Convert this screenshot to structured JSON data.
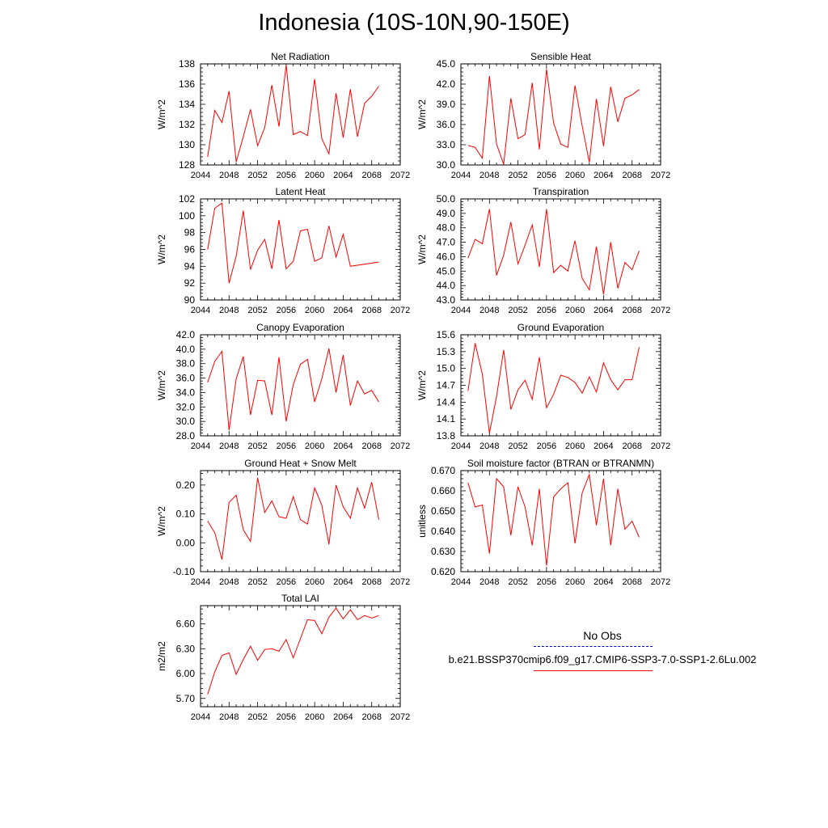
{
  "title": "Indonesia (10S-10N,90-150E)",
  "colors": {
    "model_line": "#ff0000",
    "obs_line": "#0000cc",
    "axis": "#000000"
  },
  "legend": {
    "obs_label": "No Obs",
    "case_label": "b.e21.BSSP370cmip6.f09_g17.CMIP6-SSP3-7.0-SSP1-2.6Lu.002"
  },
  "chart_data": [
    {
      "type": "line",
      "title": "Net Radiation",
      "ylabel": "W/m^2",
      "xlim": [
        2044,
        2072
      ],
      "xticks": [
        2044,
        2048,
        2052,
        2056,
        2060,
        2064,
        2068,
        2072
      ],
      "ylim": [
        128,
        138
      ],
      "yticks": [
        "128",
        "130",
        "132",
        "134",
        "136",
        "138"
      ],
      "x": [
        2045,
        2046,
        2047,
        2048,
        2049,
        2050,
        2051,
        2052,
        2053,
        2054,
        2055,
        2056,
        2057,
        2058,
        2059,
        2060,
        2061,
        2062,
        2063,
        2064,
        2065,
        2066,
        2067,
        2068,
        2069
      ],
      "series": [
        {
          "values": [
            128.8,
            133.4,
            132.2,
            135.3,
            128.3,
            130.8,
            133.5,
            129.9,
            131.7,
            135.9,
            131.8,
            137.9,
            131.0,
            131.3,
            130.9,
            136.5,
            130.6,
            129.1,
            135.1,
            130.7,
            135.5,
            130.8,
            134.1,
            134.8,
            135.8
          ]
        }
      ]
    },
    {
      "type": "line",
      "title": "Sensible Heat",
      "ylabel": "W/m^2",
      "xlim": [
        2044,
        2072
      ],
      "xticks": [
        2044,
        2048,
        2052,
        2056,
        2060,
        2064,
        2068,
        2072
      ],
      "ylim": [
        30,
        45
      ],
      "yticks": [
        "30.0",
        "33.0",
        "36.0",
        "39.0",
        "42.0",
        "45.0"
      ],
      "x": [
        2045,
        2046,
        2047,
        2048,
        2049,
        2050,
        2051,
        2052,
        2053,
        2054,
        2055,
        2056,
        2057,
        2058,
        2059,
        2060,
        2061,
        2062,
        2063,
        2064,
        2065,
        2066,
        2067,
        2068,
        2069
      ],
      "series": [
        {
          "values": [
            32.9,
            32.6,
            31.0,
            43.2,
            33.1,
            30.1,
            39.9,
            33.9,
            34.5,
            42.2,
            32.3,
            44.2,
            36.2,
            33.1,
            32.6,
            41.8,
            35.8,
            30.4,
            39.8,
            32.8,
            41.6,
            36.4,
            39.9,
            40.4,
            41.2
          ]
        }
      ]
    },
    {
      "type": "line",
      "title": "Latent Heat",
      "ylabel": "W/m^2",
      "xlim": [
        2044,
        2072
      ],
      "xticks": [
        2044,
        2048,
        2052,
        2056,
        2060,
        2064,
        2068,
        2072
      ],
      "ylim": [
        90,
        102
      ],
      "yticks": [
        "90",
        "92",
        "94",
        "96",
        "98",
        "100",
        "102"
      ],
      "x": [
        2045,
        2046,
        2047,
        2048,
        2049,
        2050,
        2051,
        2052,
        2053,
        2054,
        2055,
        2056,
        2057,
        2058,
        2059,
        2060,
        2061,
        2062,
        2063,
        2064,
        2065,
        2069
      ],
      "series": [
        {
          "values": [
            96.0,
            100.9,
            101.5,
            92.0,
            95.2,
            100.6,
            93.6,
            95.9,
            97.2,
            93.7,
            99.5,
            93.7,
            94.6,
            98.2,
            98.4,
            94.6,
            95.0,
            98.8,
            95.1,
            97.8,
            94.0,
            94.5
          ]
        }
      ]
    },
    {
      "type": "line",
      "title": "Transpiration",
      "ylabel": "W/m^2",
      "xlim": [
        2044,
        2072
      ],
      "xticks": [
        2044,
        2048,
        2052,
        2056,
        2060,
        2064,
        2068,
        2072
      ],
      "ylim": [
        43,
        50
      ],
      "yticks": [
        "43.0",
        "44.0",
        "45.0",
        "46.0",
        "47.0",
        "48.0",
        "49.0",
        "50.0"
      ],
      "x": [
        2045,
        2046,
        2047,
        2048,
        2049,
        2050,
        2051,
        2052,
        2053,
        2054,
        2055,
        2056,
        2057,
        2058,
        2059,
        2060,
        2061,
        2062,
        2063,
        2064,
        2065,
        2066,
        2067,
        2068,
        2069
      ],
      "series": [
        {
          "values": [
            45.9,
            47.2,
            46.9,
            49.3,
            44.7,
            46.1,
            48.4,
            45.5,
            46.8,
            48.2,
            45.3,
            49.3,
            44.9,
            45.4,
            45.0,
            47.1,
            44.5,
            43.7,
            46.7,
            43.4,
            47.0,
            43.8,
            45.6,
            45.1,
            46.4
          ]
        }
      ]
    },
    {
      "type": "line",
      "title": "Canopy Evaporation",
      "ylabel": "W/m^2",
      "xlim": [
        2044,
        2072
      ],
      "xticks": [
        2044,
        2048,
        2052,
        2056,
        2060,
        2064,
        2068,
        2072
      ],
      "ylim": [
        28,
        42
      ],
      "yticks": [
        "28.0",
        "30.0",
        "32.0",
        "34.0",
        "36.0",
        "38.0",
        "40.0",
        "42.0"
      ],
      "x": [
        2045,
        2046,
        2047,
        2048,
        2049,
        2050,
        2051,
        2052,
        2053,
        2054,
        2055,
        2056,
        2057,
        2058,
        2059,
        2060,
        2061,
        2062,
        2063,
        2064,
        2065,
        2066,
        2067,
        2068,
        2069
      ],
      "series": [
        {
          "values": [
            35.4,
            38.3,
            39.7,
            28.8,
            35.9,
            39.0,
            30.9,
            35.7,
            35.6,
            30.9,
            38.9,
            30.0,
            35.1,
            37.9,
            38.6,
            32.7,
            35.9,
            40.1,
            34.0,
            39.2,
            32.2,
            35.6,
            33.8,
            34.3,
            32.7
          ]
        }
      ]
    },
    {
      "type": "line",
      "title": "Ground Evaporation",
      "ylabel": "W/m^2",
      "xlim": [
        2044,
        2072
      ],
      "xticks": [
        2044,
        2048,
        2052,
        2056,
        2060,
        2064,
        2068,
        2072
      ],
      "ylim": [
        13.8,
        15.6
      ],
      "yticks": [
        "13.8",
        "14.1",
        "14.4",
        "14.7",
        "15.0",
        "15.3",
        "15.6"
      ],
      "x": [
        2045,
        2046,
        2047,
        2048,
        2049,
        2050,
        2051,
        2052,
        2053,
        2054,
        2055,
        2056,
        2057,
        2058,
        2059,
        2060,
        2061,
        2062,
        2063,
        2064,
        2065,
        2066,
        2067,
        2068,
        2069
      ],
      "series": [
        {
          "values": [
            14.6,
            15.45,
            14.9,
            13.85,
            14.5,
            15.33,
            14.27,
            14.62,
            14.79,
            14.45,
            15.2,
            14.3,
            14.54,
            14.88,
            14.84,
            14.75,
            14.56,
            14.85,
            14.58,
            15.1,
            14.8,
            14.62,
            14.8,
            14.8,
            15.38
          ]
        }
      ]
    },
    {
      "type": "line",
      "title": "Ground Heat + Snow Melt",
      "ylabel": "W/m^2",
      "xlim": [
        2044,
        2072
      ],
      "xticks": [
        2044,
        2048,
        2052,
        2056,
        2060,
        2064,
        2068,
        2072
      ],
      "ylim": [
        -0.1,
        0.25
      ],
      "yticks": [
        "-0.10",
        "0.00",
        "0.10",
        "0.20"
      ],
      "x": [
        2045,
        2046,
        2047,
        2048,
        2049,
        2050,
        2051,
        2052,
        2053,
        2054,
        2055,
        2056,
        2057,
        2058,
        2059,
        2060,
        2061,
        2062,
        2063,
        2064,
        2065,
        2066,
        2067,
        2068,
        2069
      ],
      "series": [
        {
          "values": [
            0.075,
            0.035,
            -0.058,
            0.14,
            0.165,
            0.045,
            0.005,
            0.225,
            0.105,
            0.145,
            0.09,
            0.085,
            0.16,
            0.08,
            0.065,
            0.19,
            0.13,
            -0.005,
            0.2,
            0.125,
            0.085,
            0.19,
            0.12,
            0.21,
            0.08
          ]
        }
      ]
    },
    {
      "type": "line",
      "title": "Soil moisture factor (BTRAN or BTRANMN)",
      "ylabel": "unitless",
      "xlim": [
        2044,
        2072
      ],
      "xticks": [
        2044,
        2048,
        2052,
        2056,
        2060,
        2064,
        2068,
        2072
      ],
      "ylim": [
        0.62,
        0.67
      ],
      "yticks": [
        "0.620",
        "0.630",
        "0.640",
        "0.650",
        "0.660",
        "0.670"
      ],
      "x": [
        2045,
        2046,
        2047,
        2048,
        2049,
        2050,
        2051,
        2052,
        2053,
        2054,
        2055,
        2056,
        2057,
        2058,
        2059,
        2060,
        2061,
        2062,
        2063,
        2064,
        2065,
        2066,
        2067,
        2068,
        2069
      ],
      "series": [
        {
          "values": [
            0.664,
            0.652,
            0.653,
            0.629,
            0.666,
            0.662,
            0.638,
            0.662,
            0.652,
            0.633,
            0.661,
            0.623,
            0.657,
            0.661,
            0.664,
            0.634,
            0.659,
            0.668,
            0.643,
            0.666,
            0.633,
            0.661,
            0.641,
            0.645,
            0.637
          ]
        }
      ]
    },
    {
      "type": "line",
      "title": "Total LAI",
      "ylabel": "m2/m2",
      "xlim": [
        2044,
        2072
      ],
      "xticks": [
        2044,
        2048,
        2052,
        2056,
        2060,
        2064,
        2068,
        2072
      ],
      "ylim": [
        5.6,
        6.82
      ],
      "yticks": [
        "5.70",
        "6.00",
        "6.30",
        "6.60"
      ],
      "x": [
        2045,
        2046,
        2047,
        2048,
        2049,
        2050,
        2051,
        2052,
        2053,
        2054,
        2055,
        2056,
        2057,
        2058,
        2059,
        2060,
        2061,
        2062,
        2063,
        2064,
        2065,
        2066,
        2067,
        2068,
        2069
      ],
      "series": [
        {
          "values": [
            5.75,
            6.02,
            6.22,
            6.25,
            5.99,
            6.17,
            6.33,
            6.16,
            6.29,
            6.3,
            6.27,
            6.41,
            6.19,
            6.42,
            6.65,
            6.64,
            6.48,
            6.68,
            6.79,
            6.66,
            6.77,
            6.65,
            6.7,
            6.67,
            6.7
          ]
        }
      ]
    }
  ]
}
